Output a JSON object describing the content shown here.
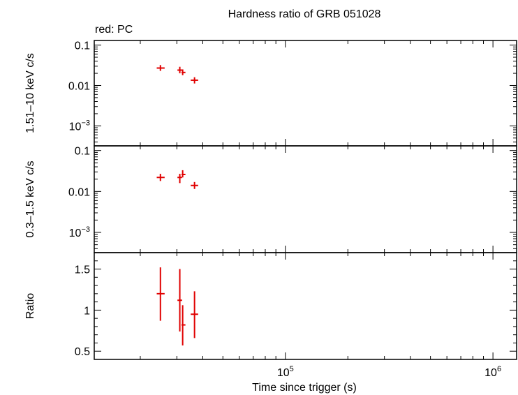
{
  "chart_data": {
    "type": "scatter",
    "title": "Hardness ratio of GRB 051028",
    "legend": "red: PC",
    "xlabel": "Time since trigger (s)",
    "x_scale": "log",
    "xlim": [
      12000,
      1300000
    ],
    "x_ticks": [
      {
        "value": 100000,
        "base": "10",
        "exp": "5"
      },
      {
        "value": 1000000,
        "base": "10",
        "exp": "6"
      }
    ],
    "series_color": "#e00000",
    "panels": [
      {
        "id": "hard",
        "ylabel": "1.51–10 keV c/s",
        "y_scale": "log",
        "ylim": [
          0.00032,
          0.13
        ],
        "y_ticks": [
          {
            "value": 0.1,
            "label": "0.1"
          },
          {
            "value": 0.01,
            "label": "0.01"
          },
          {
            "value": 0.001,
            "base": "10",
            "exp": "−3"
          }
        ],
        "points": [
          {
            "x": 25000,
            "xerr": [
              24000,
              26200
            ],
            "y": 0.027,
            "yerr": [
              0.023,
              0.032
            ]
          },
          {
            "x": 31000,
            "xerr": [
              30200,
              31800
            ],
            "y": 0.024,
            "yerr": [
              0.02,
              0.029
            ]
          },
          {
            "x": 32000,
            "xerr": [
              31600,
              33000
            ],
            "y": 0.021,
            "yerr": [
              0.018,
              0.025
            ]
          },
          {
            "x": 36500,
            "xerr": [
              35000,
              38000
            ],
            "y": 0.0135,
            "yerr": [
              0.0112,
              0.016
            ]
          }
        ]
      },
      {
        "id": "soft",
        "ylabel": "0.3–1.5 keV c/s",
        "y_scale": "log",
        "ylim": [
          0.00032,
          0.13
        ],
        "y_ticks": [
          {
            "value": 0.1,
            "label": "0.1"
          },
          {
            "value": 0.01,
            "label": "0.01"
          },
          {
            "value": 0.001,
            "base": "10",
            "exp": "−3"
          }
        ],
        "points": [
          {
            "x": 25000,
            "xerr": [
              24000,
              26200
            ],
            "y": 0.022,
            "yerr": [
              0.018,
              0.027
            ]
          },
          {
            "x": 31000,
            "xerr": [
              30200,
              31800
            ],
            "y": 0.022,
            "yerr": [
              0.016,
              0.027
            ]
          },
          {
            "x": 32000,
            "xerr": [
              31600,
              33000
            ],
            "y": 0.026,
            "yerr": [
              0.022,
              0.033
            ]
          },
          {
            "x": 36500,
            "xerr": [
              35000,
              38000
            ],
            "y": 0.014,
            "yerr": [
              0.0115,
              0.017
            ]
          }
        ]
      },
      {
        "id": "ratio",
        "ylabel": "Ratio",
        "y_scale": "linear",
        "ylim": [
          0.4,
          1.7
        ],
        "y_ticks": [
          {
            "value": 0.5,
            "label": "0.5"
          },
          {
            "value": 1,
            "label": "1"
          },
          {
            "value": 1.5,
            "label": "1.5"
          }
        ],
        "points": [
          {
            "x": 25000,
            "xerr": [
              24000,
              26200
            ],
            "y": 1.2,
            "yerr": [
              0.87,
              1.52
            ]
          },
          {
            "x": 31000,
            "xerr": [
              30200,
              31800
            ],
            "y": 1.12,
            "yerr": [
              0.74,
              1.5
            ]
          },
          {
            "x": 32000,
            "xerr": [
              31600,
              33000
            ],
            "y": 0.82,
            "yerr": [
              0.57,
              1.06
            ]
          },
          {
            "x": 36500,
            "xerr": [
              35000,
              38000
            ],
            "y": 0.95,
            "yerr": [
              0.66,
              1.23
            ]
          }
        ]
      }
    ]
  }
}
